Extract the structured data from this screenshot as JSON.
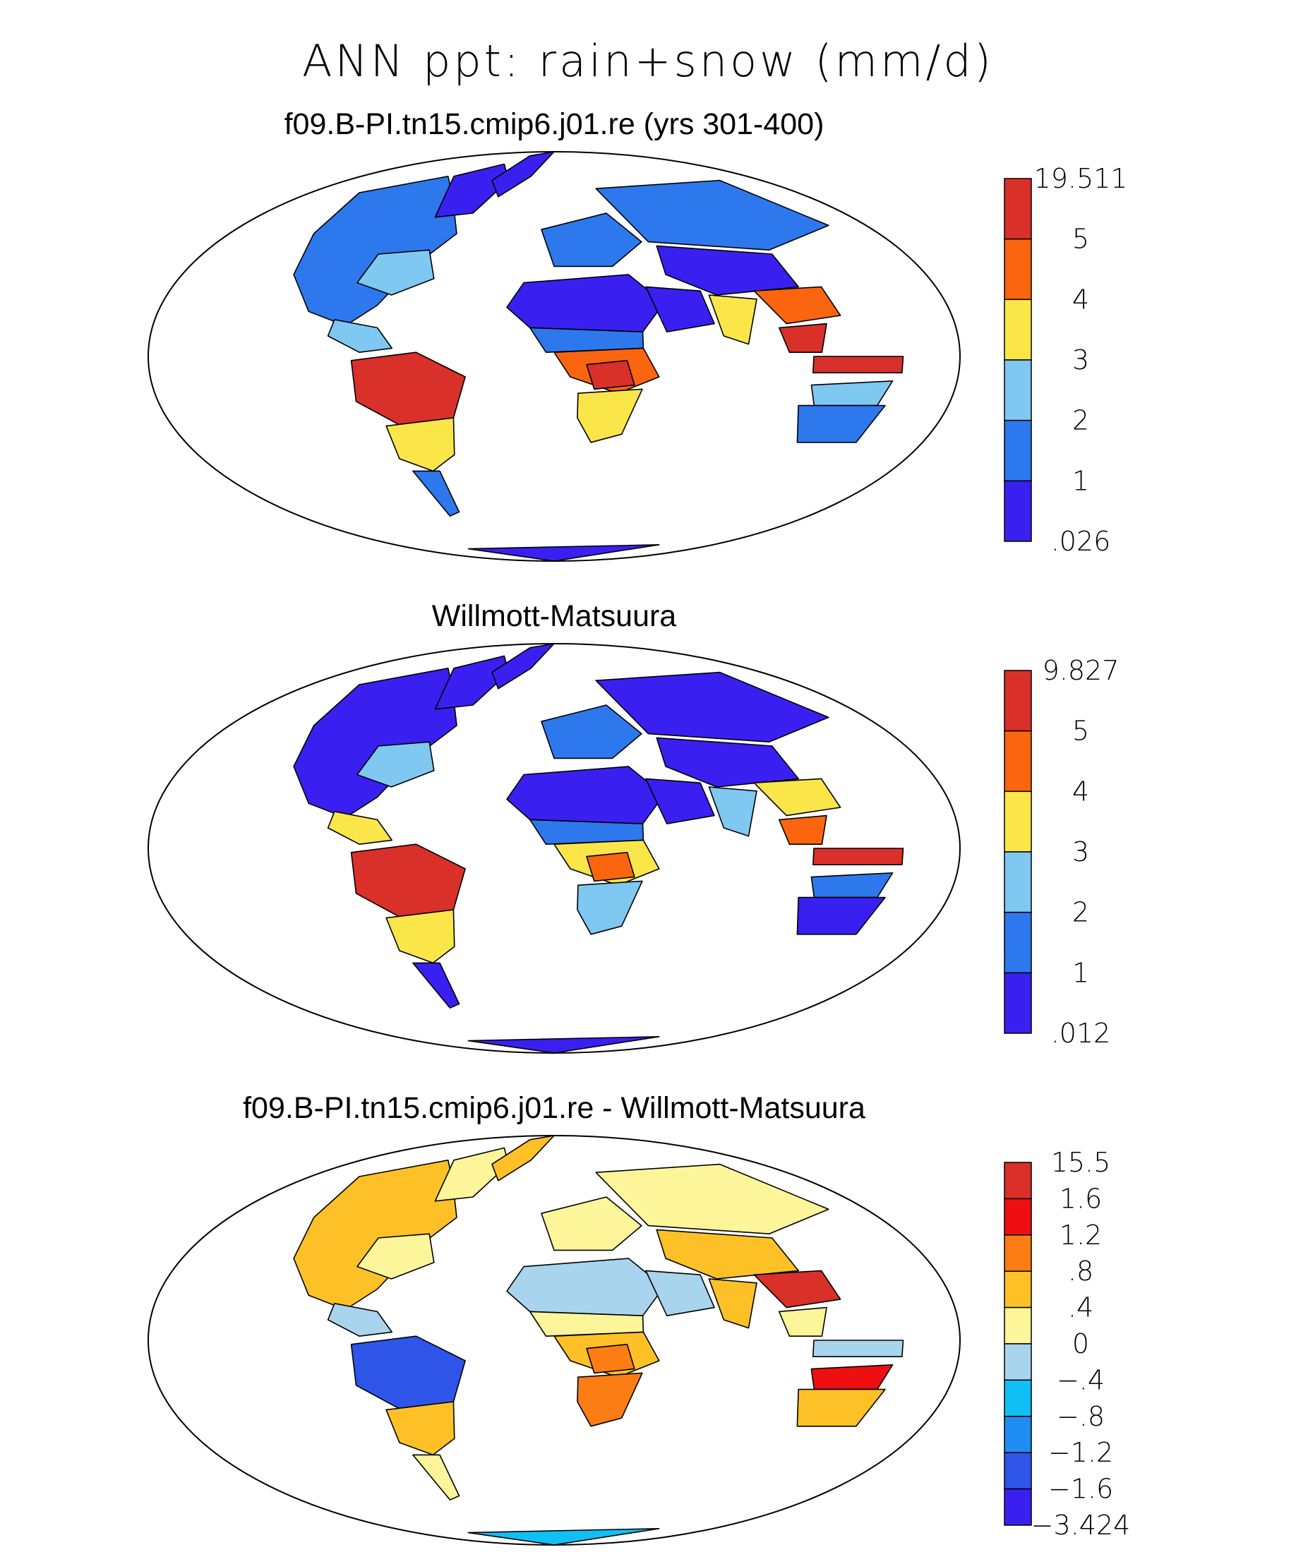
{
  "figure": {
    "title": "ANN ppt: rain+snow (mm/d)"
  },
  "colors": {
    "precip_scale": [
      "#3a20f0",
      "#2e78ee",
      "#7ec8f2",
      "#fbe64a",
      "#fb6510",
      "#d9302a"
    ],
    "diff_scale": [
      "#3a20f0",
      "#2f55e8",
      "#1e8cf0",
      "#10c0f5",
      "#a9d4ee",
      "#fdf59a",
      "#fdc127",
      "#fb7d14",
      "#ee1010",
      "#d9302a"
    ],
    "coastline": "#000000",
    "ocean": "#ffffff"
  },
  "panels": [
    {
      "title": "f09.B-PI.tn15.cmip6.j01.re (yrs 301-400)",
      "colorbar_labels": [
        "19.511",
        "5",
        "4",
        "3",
        "2",
        "1",
        ".026"
      ],
      "field": "precip",
      "fills": {
        "north-america": 1,
        "canada-east": 0,
        "us-east": 2,
        "central-america": 2,
        "amazon": 5,
        "south-america-south": 3,
        "patagonia": 1,
        "sahara": 0,
        "sahel": 1,
        "central-africa": 4,
        "congo": 5,
        "southern-africa": 3,
        "europe": 1,
        "siberia": 1,
        "central-asia": 0,
        "middle-east": 0,
        "south-asia": 3,
        "south-china": 4,
        "southeast-asia": 5,
        "indonesia": 5,
        "australia": 1,
        "australia-north": 2,
        "greenland": 0,
        "antarctica": 0
      }
    },
    {
      "title": "Willmott-Matsuura",
      "colorbar_labels": [
        "9.827",
        "5",
        "4",
        "3",
        "2",
        "1",
        ".012"
      ],
      "field": "precip",
      "fills": {
        "north-america": 0,
        "canada-east": 0,
        "us-east": 2,
        "central-america": 3,
        "amazon": 5,
        "south-america-south": 3,
        "patagonia": 0,
        "sahara": 0,
        "sahel": 1,
        "central-africa": 3,
        "congo": 4,
        "southern-africa": 2,
        "europe": 1,
        "siberia": 0,
        "central-asia": 0,
        "middle-east": 0,
        "south-asia": 2,
        "south-china": 3,
        "southeast-asia": 4,
        "indonesia": 5,
        "australia": 0,
        "australia-north": 1,
        "greenland": 0,
        "antarctica": 0
      }
    },
    {
      "title": "f09.B-PI.tn15.cmip6.j01.re - Willmott-Matsuura",
      "colorbar_labels": [
        "15.5",
        "1.6",
        "1.2",
        ".8",
        ".4",
        "0",
        "−.4",
        "−.8",
        "−1.2",
        "−1.6",
        "−3.424"
      ],
      "field": "diff",
      "fills": {
        "north-america": 6,
        "canada-east": 5,
        "us-east": 5,
        "central-america": 4,
        "amazon": 1,
        "south-america-south": 6,
        "patagonia": 5,
        "sahara": 4,
        "sahel": 5,
        "central-africa": 6,
        "congo": 7,
        "southern-africa": 7,
        "europe": 5,
        "siberia": 5,
        "central-asia": 6,
        "middle-east": 4,
        "south-asia": 6,
        "south-china": 9,
        "southeast-asia": 5,
        "indonesia": 4,
        "australia": 6,
        "australia-north": 8,
        "greenland": 6,
        "antarctica": 3
      }
    }
  ]
}
